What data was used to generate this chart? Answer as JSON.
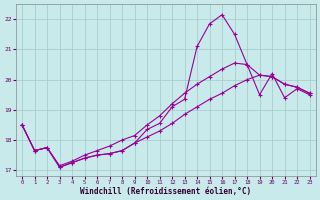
{
  "xlabel": "Windchill (Refroidissement éolien,°C)",
  "xlim": [
    -0.5,
    23.5
  ],
  "ylim": [
    16.8,
    22.5
  ],
  "yticks": [
    17,
    18,
    19,
    20,
    21,
    22
  ],
  "xticks": [
    0,
    1,
    2,
    3,
    4,
    5,
    6,
    7,
    8,
    9,
    10,
    11,
    12,
    13,
    14,
    15,
    16,
    17,
    18,
    19,
    20,
    21,
    22,
    23
  ],
  "background_color": "#c8eaea",
  "grid_color": "#a0c8c8",
  "line_color": "#990099",
  "line1_x": [
    0,
    1,
    2,
    3,
    4,
    5,
    6,
    7,
    8,
    9,
    10,
    11,
    12,
    13,
    14,
    15,
    16,
    17,
    18,
    19,
    20,
    21,
    22,
    23
  ],
  "line1_y": [
    18.5,
    17.65,
    17.75,
    17.1,
    17.25,
    17.4,
    17.5,
    17.55,
    17.65,
    17.9,
    18.35,
    18.55,
    19.1,
    19.35,
    21.1,
    21.85,
    22.15,
    21.5,
    20.5,
    19.5,
    20.2,
    19.4,
    19.7,
    19.5
  ],
  "line2_x": [
    0,
    1,
    2,
    3,
    4,
    5,
    6,
    7,
    8,
    9,
    10,
    11,
    12,
    13,
    14,
    15,
    16,
    17,
    18,
    19,
    20,
    21,
    22,
    23
  ],
  "line2_y": [
    18.5,
    17.65,
    17.75,
    17.15,
    17.3,
    17.5,
    17.65,
    17.8,
    18.0,
    18.15,
    18.5,
    18.8,
    19.2,
    19.55,
    19.85,
    20.1,
    20.35,
    20.55,
    20.5,
    20.15,
    20.1,
    19.85,
    19.75,
    19.55
  ],
  "line3_x": [
    0,
    1,
    2,
    3,
    4,
    5,
    6,
    7,
    8,
    9,
    10,
    11,
    12,
    13,
    14,
    15,
    16,
    17,
    18,
    19,
    20,
    21,
    22,
    23
  ],
  "line3_y": [
    18.5,
    17.65,
    17.75,
    17.1,
    17.25,
    17.4,
    17.5,
    17.55,
    17.65,
    17.9,
    18.1,
    18.3,
    18.55,
    18.85,
    19.1,
    19.35,
    19.55,
    19.8,
    20.0,
    20.15,
    20.1,
    19.85,
    19.75,
    19.55
  ]
}
